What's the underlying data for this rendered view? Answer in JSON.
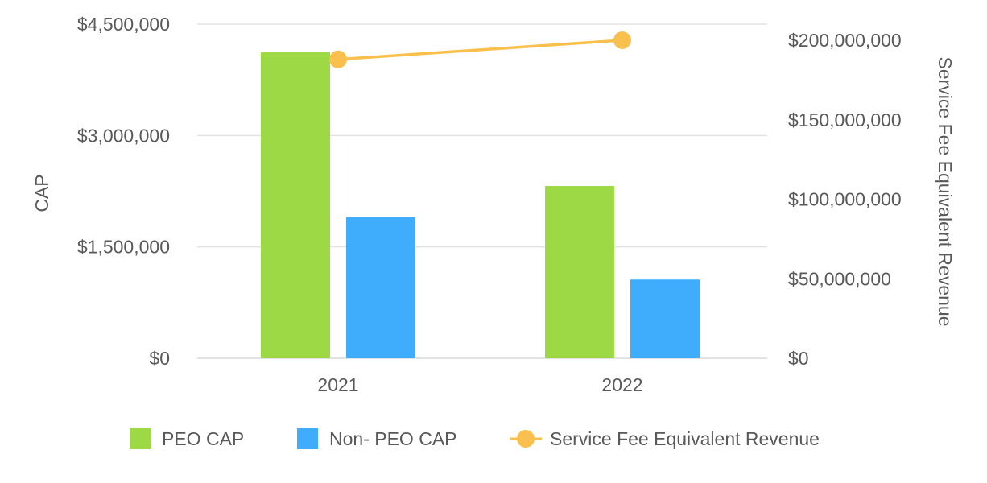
{
  "chart_data": {
    "type": "bar",
    "title": "",
    "categories": [
      "2021",
      "2022"
    ],
    "series": [
      {
        "name": "PEO CAP",
        "type": "bar",
        "axis": "left",
        "color": "#9dd944",
        "values": [
          4120000,
          2320000
        ]
      },
      {
        "name": "Non- PEO CAP",
        "type": "bar",
        "axis": "left",
        "color": "#3fadfc",
        "values": [
          1900000,
          1060000
        ]
      },
      {
        "name": "Service Fee Equivalent Revenue",
        "type": "line",
        "axis": "right",
        "color": "#f9c04d",
        "values": [
          188000000,
          200000000
        ]
      }
    ],
    "ylabel": "CAP",
    "ylabel_right": "Service Fee Equivalent Revenue",
    "ylim": [
      0,
      4500000
    ],
    "ylim_right": [
      0,
      210000000
    ],
    "yticks": [
      0,
      1500000,
      3000000,
      4500000
    ],
    "yticks_right": [
      0,
      50000000,
      100000000,
      150000000,
      200000000
    ],
    "ytick_labels": [
      "$0",
      "$1,500,000",
      "$3,000,000",
      "$4,500,000"
    ],
    "ytick_labels_right": [
      "$0",
      "$50,000,000",
      "$100,000,000",
      "$150,000,000",
      "$200,000,000"
    ],
    "grid": true,
    "legend_position": "bottom"
  }
}
